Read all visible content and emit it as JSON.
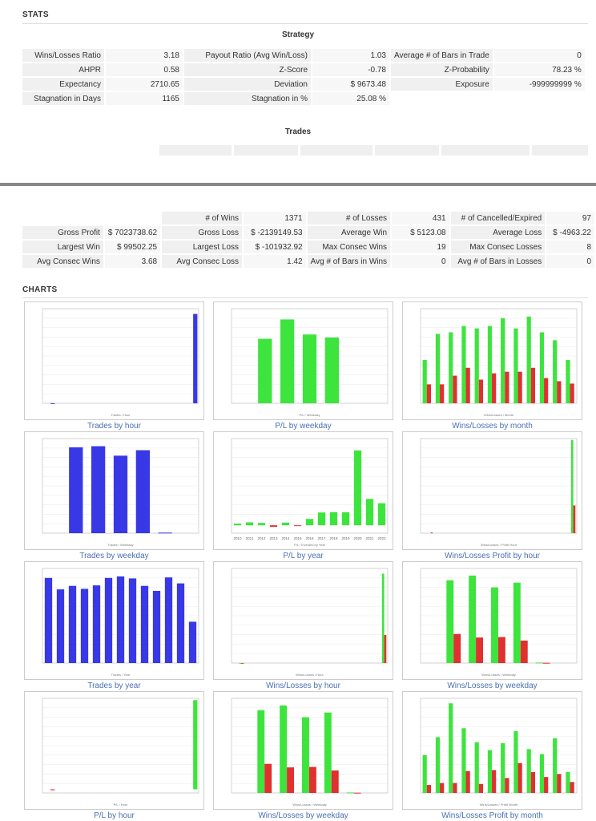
{
  "stats_heading": "STATS",
  "strategy_caption": "Strategy",
  "trades_caption": "Trades",
  "charts_heading": "CHARTS",
  "strategy_table": [
    [
      {
        "l": "Wins/Losses Ratio",
        "v": "3.18"
      },
      {
        "l": "Payout Ratio (Avg Win/Loss)",
        "v": "1.03"
      },
      {
        "l": "Average # of Bars in Trade",
        "v": "0"
      }
    ],
    [
      {
        "l": "AHPR",
        "v": "0.58"
      },
      {
        "l": "Z-Score",
        "v": "-0.78"
      },
      {
        "l": "Z-Probability",
        "v": "78.23 %"
      }
    ],
    [
      {
        "l": "Expectancy",
        "v": "2710.65"
      },
      {
        "l": "Deviation",
        "v": "$ 9673.48"
      },
      {
        "l": "Exposure",
        "v": "-999999999 %"
      }
    ],
    [
      {
        "l": "Stagnation in Days",
        "v": "1165"
      },
      {
        "l": "Stagnation in %",
        "v": "25.08 %"
      },
      {
        "l": "",
        "v": ""
      }
    ]
  ],
  "trades_table": [
    [
      {
        "l": "",
        "v": ""
      },
      {
        "l": "# of Wins",
        "v": "1371"
      },
      {
        "l": "# of Losses",
        "v": "431"
      },
      {
        "l": "# of Cancelled/Expired",
        "v": "97"
      }
    ],
    [
      {
        "l": "Gross Profit",
        "v": "$ 7023738.62"
      },
      {
        "l": "Gross Loss",
        "v": "$ -2139149.53"
      },
      {
        "l": "Average Win",
        "v": "$ 5123.08"
      },
      {
        "l": "Average Loss",
        "v": "$ -4963.22"
      }
    ],
    [
      {
        "l": "Largest Win",
        "v": "$ 99502.25"
      },
      {
        "l": "Largest Loss",
        "v": "$ -101932.92"
      },
      {
        "l": "Max Consec Wins",
        "v": "19"
      },
      {
        "l": "Max Consec Losses",
        "v": "8"
      }
    ],
    [
      {
        "l": "Avg Consec Wins",
        "v": "3.68"
      },
      {
        "l": "Avg Consec Loss",
        "v": "1.42"
      },
      {
        "l": "Avg # of Bars in Wins",
        "v": "0"
      },
      {
        "l": "Avg # of Bars in Losses",
        "v": "0"
      }
    ]
  ],
  "colors": {
    "win": "#3ee43e",
    "loss": "#e03030",
    "neutral": "#3838e6",
    "link": "#4a6fb1"
  },
  "chart_data": [
    {
      "id": "trades-by-hour",
      "type": "bar",
      "title": "Trades by hour",
      "xlabel": "Trades / Hour",
      "series": [
        {
          "color": "neutral",
          "values": [
            0,
            2,
            0,
            0,
            0,
            0,
            0,
            0,
            0,
            0,
            0,
            0,
            0,
            0,
            0,
            0,
            0,
            0,
            0,
            0,
            0,
            0,
            1700
          ]
        }
      ],
      "ylim": [
        0,
        1800
      ]
    },
    {
      "id": "pl-by-weekday",
      "type": "bar",
      "title": "P/L by weekday",
      "xlabel": "P/L / Weekday",
      "series": [
        {
          "color": "win",
          "values": [
            0,
            1500000,
            1950000,
            1600000,
            1530000,
            0,
            0
          ]
        }
      ],
      "ylim": [
        0,
        2200000
      ]
    },
    {
      "id": "wins-losses-by-month",
      "type": "bar",
      "title": "Wins/Losses by month",
      "xlabel": "Wins/Losses / Month",
      "series": [
        {
          "color": "win",
          "values": [
            55,
            88,
            90,
            98,
            95,
            98,
            108,
            95,
            110,
            90,
            80,
            55
          ]
        },
        {
          "color": "loss",
          "values": [
            24,
            24,
            35,
            45,
            30,
            38,
            40,
            40,
            45,
            32,
            28,
            25
          ]
        }
      ],
      "ylim": [
        0,
        120
      ]
    },
    {
      "id": "trades-by-weekday",
      "type": "bar",
      "title": "Trades by weekday",
      "xlabel": "Trades / Weekday",
      "series": [
        {
          "color": "neutral",
          "values": [
            0,
            472,
            478,
            426,
            456,
            3,
            0
          ]
        }
      ],
      "ylim": [
        0,
        520
      ]
    },
    {
      "id": "pl-by-year",
      "type": "bar",
      "title": "P/L by year",
      "xlabel": "P/L / Invested by Year",
      "categories": [
        "2010",
        "2011",
        "2012",
        "2013",
        "2014",
        "2015",
        "2016",
        "2017",
        "2018",
        "2019",
        "2020",
        "2021",
        "2022"
      ],
      "series": [
        {
          "color": "mixed",
          "values": [
            41917,
            74299,
            59225,
            -40000,
            68672,
            -20000,
            161412,
            325000,
            334000,
            331000,
            1900000,
            670000,
            560000
          ]
        }
      ],
      "ylim": [
        -200000,
        2200000
      ]
    },
    {
      "id": "wl-profit-by-hour",
      "type": "bar",
      "title": "Wins/Losses Profit by hour",
      "xlabel": "Wins/Losses / Profit Hour",
      "series": [
        {
          "color": "win",
          "values": [
            0,
            0,
            0,
            0,
            0,
            0,
            0,
            0,
            0,
            0,
            0,
            0,
            0,
            0,
            0,
            0,
            0,
            0,
            0,
            0,
            0,
            0,
            6900000
          ]
        },
        {
          "color": "loss",
          "values": [
            0,
            50000,
            0,
            0,
            0,
            0,
            0,
            0,
            0,
            0,
            0,
            0,
            0,
            0,
            0,
            0,
            0,
            0,
            0,
            0,
            0,
            0,
            2050000
          ]
        }
      ],
      "ylim": [
        0,
        7000000
      ]
    },
    {
      "id": "trades-by-year",
      "type": "bar",
      "title": "Trades by year",
      "xlabel": "Trades / Year",
      "series": [
        {
          "color": "neutral",
          "values": [
            171,
            148,
            155,
            149,
            156,
            171,
            174,
            170,
            155,
            145,
            172,
            160,
            83
          ]
        }
      ],
      "ylim": [
        0,
        190
      ]
    },
    {
      "id": "wins-losses-by-hour",
      "type": "bar",
      "title": "Wins/Losses by hour",
      "xlabel": "Wins/Losses / Hour",
      "series": [
        {
          "color": "win",
          "values": [
            0,
            1,
            0,
            0,
            0,
            0,
            0,
            0,
            0,
            0,
            0,
            0,
            0,
            0,
            0,
            0,
            0,
            0,
            0,
            0,
            0,
            0,
            1370
          ]
        },
        {
          "color": "loss",
          "values": [
            0,
            1,
            0,
            0,
            0,
            0,
            0,
            0,
            0,
            0,
            0,
            0,
            0,
            0,
            0,
            0,
            0,
            0,
            0,
            0,
            0,
            0,
            430
          ]
        }
      ],
      "ylim": [
        0,
        1450
      ]
    },
    {
      "id": "wins-losses-by-weekday",
      "type": "bar",
      "title": "Wins/Losses by weekday",
      "xlabel": "Wins/Losses / Weekday",
      "series": [
        {
          "color": "win",
          "values": [
            0,
            350,
            370,
            320,
            340,
            2,
            0
          ]
        },
        {
          "color": "loss",
          "values": [
            0,
            123,
            108,
            110,
            95,
            1,
            0
          ]
        }
      ],
      "ylim": [
        0,
        400
      ]
    },
    {
      "id": "pl-by-hour",
      "type": "bar",
      "title": "P/L by hour",
      "xlabel": "P/L / Hour",
      "series": [
        {
          "color": "mixed",
          "values": [
            0,
            -50000,
            0,
            0,
            0,
            0,
            0,
            0,
            0,
            0,
            0,
            0,
            0,
            0,
            0,
            0,
            0,
            0,
            0,
            0,
            0,
            0,
            4900000
          ]
        }
      ],
      "ylim": [
        -200000,
        5000000
      ]
    },
    {
      "id": "wins-losses-by-weekday-2",
      "type": "bar",
      "title": "Wins/Losses by weekday",
      "xlabel": "Wins/Losses / Weekday",
      "series": [
        {
          "color": "win",
          "values": [
            0,
            350,
            370,
            320,
            340,
            2,
            0
          ]
        },
        {
          "color": "loss",
          "values": [
            0,
            123,
            108,
            110,
            95,
            1,
            0
          ]
        }
      ],
      "ylim": [
        0,
        400
      ]
    },
    {
      "id": "wl-profit-by-month",
      "type": "bar",
      "title": "Wins/Losses Profit by month",
      "xlabel": "Wins/Losses / Profit Month",
      "series": [
        {
          "color": "win",
          "values": [
            380000,
            560000,
            900000,
            650000,
            510000,
            430000,
            500000,
            620000,
            440000,
            390000,
            550000,
            210000
          ]
        },
        {
          "color": "loss",
          "values": [
            80000,
            100000,
            100000,
            220000,
            90000,
            230000,
            150000,
            300000,
            210000,
            160000,
            190000,
            110000
          ]
        }
      ],
      "ylim": [
        0,
        950000
      ]
    }
  ]
}
